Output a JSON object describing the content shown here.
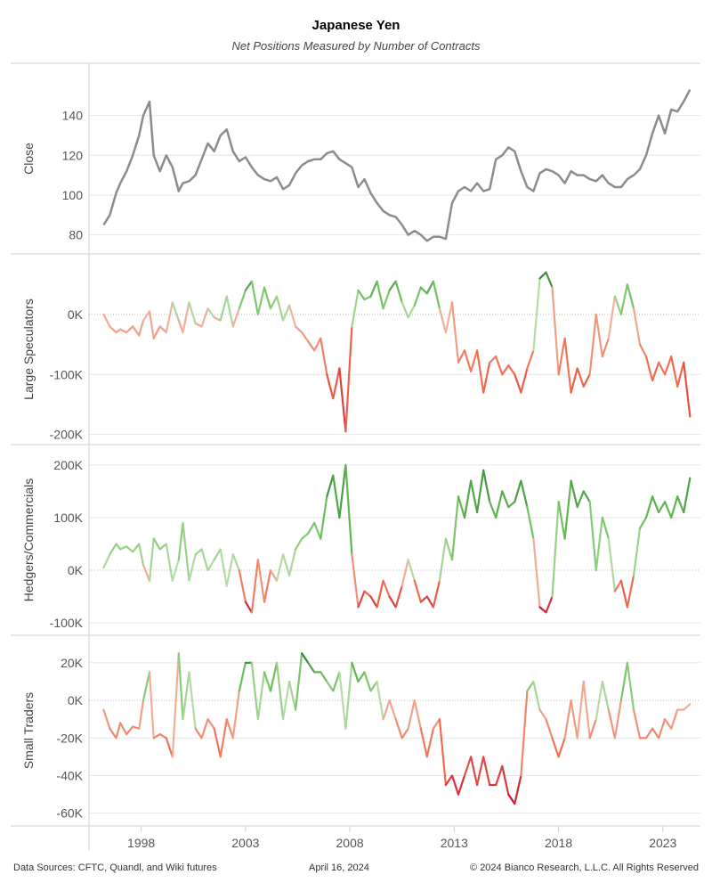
{
  "header": {
    "title": "Japanese Yen",
    "subtitle": "Net Positions Measured by Number of Contracts"
  },
  "footer": {
    "sources": "Data Sources: CFTC, Quandl, and Wiki futures",
    "date": "April 16, 2024",
    "copyright": "© 2024 Bianco Research, L.L.C. All Rights Reserved"
  },
  "colors": {
    "close_line": "#8c8c8c",
    "positive_light": "#b6dba6",
    "positive_mid": "#6cbf5a",
    "positive_dark": "#2e7d32",
    "negative_light": "#f2b49e",
    "negative_mid": "#f06a4f",
    "negative_dark": "#c8102e",
    "grid": "#e6e6e6",
    "zero_line": "#bdbdbd"
  },
  "chart_data": [
    {
      "type": "line",
      "name": "close-panel",
      "ylabel": "Close",
      "yticks": [
        80,
        100,
        120,
        140
      ],
      "ylim": [
        74,
        160
      ],
      "x": [
        1996.2,
        1996.5,
        1996.8,
        1997.0,
        1997.3,
        1997.6,
        1997.9,
        1998.1,
        1998.4,
        1998.6,
        1998.9,
        1999.2,
        1999.5,
        1999.8,
        2000.0,
        2000.3,
        2000.6,
        2000.9,
        2001.2,
        2001.5,
        2001.8,
        2002.1,
        2002.4,
        2002.7,
        2003.0,
        2003.3,
        2003.6,
        2003.9,
        2004.2,
        2004.5,
        2004.8,
        2005.1,
        2005.4,
        2005.7,
        2006.0,
        2006.3,
        2006.6,
        2006.9,
        2007.2,
        2007.5,
        2007.8,
        2008.1,
        2008.4,
        2008.7,
        2009.0,
        2009.3,
        2009.6,
        2009.9,
        2010.2,
        2010.5,
        2010.8,
        2011.1,
        2011.4,
        2011.7,
        2012.0,
        2012.3,
        2012.6,
        2012.9,
        2013.2,
        2013.5,
        2013.8,
        2014.1,
        2014.4,
        2014.7,
        2015.0,
        2015.3,
        2015.6,
        2015.9,
        2016.2,
        2016.5,
        2016.8,
        2017.1,
        2017.4,
        2017.7,
        2018.0,
        2018.3,
        2018.6,
        2018.9,
        2019.2,
        2019.5,
        2019.8,
        2020.1,
        2020.4,
        2020.7,
        2021.0,
        2021.3,
        2021.6,
        2021.9,
        2022.2,
        2022.5,
        2022.8,
        2023.1,
        2023.4,
        2023.7,
        2024.0,
        2024.3
      ],
      "values": [
        85,
        90,
        101,
        106,
        112,
        120,
        130,
        140,
        147,
        120,
        112,
        120,
        114,
        102,
        106,
        107,
        110,
        118,
        126,
        122,
        130,
        133,
        122,
        117,
        119,
        114,
        110,
        108,
        107,
        109,
        103,
        105,
        111,
        115,
        117,
        118,
        118,
        121,
        122,
        118,
        116,
        114,
        104,
        108,
        101,
        96,
        92,
        90,
        89,
        85,
        80,
        82,
        80,
        77,
        79,
        79,
        78,
        96,
        102,
        104,
        102,
        106,
        102,
        103,
        118,
        120,
        124,
        122,
        112,
        104,
        102,
        111,
        113,
        112,
        110,
        106,
        112,
        110,
        110,
        108,
        107,
        110,
        106,
        104,
        104,
        108,
        110,
        113,
        120,
        131,
        140,
        131,
        143,
        142,
        147,
        153
      ]
    },
    {
      "type": "line",
      "name": "large-speculators-panel",
      "ylabel": "Large Speculators",
      "yticks": [
        -200000,
        -100000,
        0
      ],
      "ytick_labels": [
        "-200K",
        "-100K",
        "0K"
      ],
      "ylim": [
        -205000,
        80000
      ],
      "x": [
        1996.2,
        1996.5,
        1996.8,
        1997.0,
        1997.3,
        1997.6,
        1997.9,
        1998.1,
        1998.4,
        1998.6,
        1998.9,
        1999.2,
        1999.5,
        1999.8,
        2000.0,
        2000.3,
        2000.6,
        2000.9,
        2001.2,
        2001.5,
        2001.8,
        2002.1,
        2002.4,
        2002.7,
        2003.0,
        2003.3,
        2003.6,
        2003.9,
        2004.2,
        2004.5,
        2004.8,
        2005.1,
        2005.4,
        2005.7,
        2006.0,
        2006.3,
        2006.6,
        2006.9,
        2007.2,
        2007.5,
        2007.8,
        2008.1,
        2008.4,
        2008.7,
        2009.0,
        2009.3,
        2009.6,
        2009.9,
        2010.2,
        2010.5,
        2010.8,
        2011.1,
        2011.4,
        2011.7,
        2012.0,
        2012.3,
        2012.6,
        2012.9,
        2013.2,
        2013.5,
        2013.8,
        2014.1,
        2014.4,
        2014.7,
        2015.0,
        2015.3,
        2015.6,
        2015.9,
        2016.2,
        2016.5,
        2016.8,
        2017.1,
        2017.4,
        2017.7,
        2018.0,
        2018.3,
        2018.6,
        2018.9,
        2019.2,
        2019.5,
        2019.8,
        2020.1,
        2020.4,
        2020.7,
        2021.0,
        2021.3,
        2021.6,
        2021.9,
        2022.2,
        2022.5,
        2022.8,
        2023.1,
        2023.4,
        2023.7,
        2024.0,
        2024.3
      ],
      "values": [
        0,
        -20000,
        -30000,
        -25000,
        -30000,
        -20000,
        -35000,
        -10000,
        5000,
        -40000,
        -20000,
        -30000,
        20000,
        -10000,
        -30000,
        20000,
        -15000,
        -20000,
        10000,
        -5000,
        -10000,
        30000,
        -20000,
        10000,
        40000,
        55000,
        0,
        45000,
        10000,
        30000,
        -10000,
        15000,
        -20000,
        -30000,
        -45000,
        -60000,
        -40000,
        -100000,
        -140000,
        -90000,
        -195000,
        -20000,
        40000,
        25000,
        30000,
        55000,
        10000,
        40000,
        55000,
        20000,
        -5000,
        15000,
        45000,
        35000,
        55000,
        10000,
        -30000,
        20000,
        -80000,
        -60000,
        -95000,
        -60000,
        -130000,
        -80000,
        -70000,
        -100000,
        -85000,
        -100000,
        -130000,
        -90000,
        -60000,
        60000,
        70000,
        45000,
        -100000,
        -40000,
        -130000,
        -90000,
        -120000,
        -100000,
        0,
        -70000,
        -40000,
        30000,
        0,
        50000,
        10000,
        -50000,
        -70000,
        -110000,
        -80000,
        -100000,
        -70000,
        -120000,
        -80000,
        -170000
      ]
    },
    {
      "type": "line",
      "name": "hedgers-commercials-panel",
      "ylabel": "Hedgers/Commercials",
      "yticks": [
        -100000,
        0,
        100000,
        200000
      ],
      "ytick_labels": [
        "-100K",
        "0K",
        "100K",
        "200K"
      ],
      "ylim": [
        -110000,
        215000
      ],
      "x": [
        1996.2,
        1996.5,
        1996.8,
        1997.0,
        1997.3,
        1997.6,
        1997.9,
        1998.1,
        1998.4,
        1998.6,
        1998.9,
        1999.2,
        1999.5,
        1999.8,
        2000.0,
        2000.3,
        2000.6,
        2000.9,
        2001.2,
        2001.5,
        2001.8,
        2002.1,
        2002.4,
        2002.7,
        2003.0,
        2003.3,
        2003.6,
        2003.9,
        2004.2,
        2004.5,
        2004.8,
        2005.1,
        2005.4,
        2005.7,
        2006.0,
        2006.3,
        2006.6,
        2006.9,
        2007.2,
        2007.5,
        2007.8,
        2008.1,
        2008.4,
        2008.7,
        2009.0,
        2009.3,
        2009.6,
        2009.9,
        2010.2,
        2010.5,
        2010.8,
        2011.1,
        2011.4,
        2011.7,
        2012.0,
        2012.3,
        2012.6,
        2012.9,
        2013.2,
        2013.5,
        2013.8,
        2014.1,
        2014.4,
        2014.7,
        2015.0,
        2015.3,
        2015.6,
        2015.9,
        2016.2,
        2016.5,
        2016.8,
        2017.1,
        2017.4,
        2017.7,
        2018.0,
        2018.3,
        2018.6,
        2018.9,
        2019.2,
        2019.5,
        2019.8,
        2020.1,
        2020.4,
        2020.7,
        2021.0,
        2021.3,
        2021.6,
        2021.9,
        2022.2,
        2022.5,
        2022.8,
        2023.1,
        2023.4,
        2023.7,
        2024.0,
        2024.3
      ],
      "values": [
        5000,
        30000,
        50000,
        40000,
        45000,
        35000,
        50000,
        10000,
        -20000,
        60000,
        40000,
        50000,
        -20000,
        20000,
        90000,
        -20000,
        30000,
        40000,
        0,
        20000,
        40000,
        -30000,
        30000,
        0,
        -60000,
        -80000,
        20000,
        -60000,
        0,
        -20000,
        30000,
        -10000,
        40000,
        60000,
        70000,
        90000,
        60000,
        140000,
        180000,
        100000,
        200000,
        30000,
        -70000,
        -40000,
        -50000,
        -70000,
        -20000,
        -50000,
        -70000,
        -30000,
        20000,
        -20000,
        -60000,
        -50000,
        -70000,
        -20000,
        60000,
        20000,
        140000,
        100000,
        170000,
        110000,
        190000,
        130000,
        100000,
        150000,
        120000,
        130000,
        170000,
        120000,
        60000,
        -70000,
        -80000,
        -50000,
        130000,
        60000,
        170000,
        120000,
        150000,
        130000,
        0,
        100000,
        60000,
        -40000,
        -20000,
        -70000,
        -10000,
        80000,
        100000,
        140000,
        110000,
        130000,
        100000,
        140000,
        110000,
        175000
      ]
    },
    {
      "type": "line",
      "name": "small-traders-panel",
      "ylabel": "Small Traders",
      "yticks": [
        -60000,
        -40000,
        -20000,
        0,
        20000
      ],
      "ytick_labels": [
        "-60K",
        "-40K",
        "-20K",
        "0K",
        "20K"
      ],
      "ylim": [
        -63000,
        28000
      ],
      "x": [
        1996.2,
        1996.5,
        1996.8,
        1997.0,
        1997.3,
        1997.6,
        1997.9,
        1998.1,
        1998.4,
        1998.6,
        1998.9,
        1999.2,
        1999.5,
        1999.8,
        2000.0,
        2000.3,
        2000.6,
        2000.9,
        2001.2,
        2001.5,
        2001.8,
        2002.1,
        2002.4,
        2002.7,
        2003.0,
        2003.3,
        2003.6,
        2003.9,
        2004.2,
        2004.5,
        2004.8,
        2005.1,
        2005.4,
        2005.7,
        2006.0,
        2006.3,
        2006.6,
        2006.9,
        2007.2,
        2007.5,
        2007.8,
        2008.1,
        2008.4,
        2008.7,
        2009.0,
        2009.3,
        2009.6,
        2009.9,
        2010.2,
        2010.5,
        2010.8,
        2011.1,
        2011.4,
        2011.7,
        2012.0,
        2012.3,
        2012.6,
        2012.9,
        2013.2,
        2013.5,
        2013.8,
        2014.1,
        2014.4,
        2014.7,
        2015.0,
        2015.3,
        2015.6,
        2015.9,
        2016.2,
        2016.5,
        2016.8,
        2017.1,
        2017.4,
        2017.7,
        2018.0,
        2018.3,
        2018.6,
        2018.9,
        2019.2,
        2019.5,
        2019.8,
        2020.1,
        2020.4,
        2020.7,
        2021.0,
        2021.3,
        2021.6,
        2021.9,
        2022.2,
        2022.5,
        2022.8,
        2023.1,
        2023.4,
        2023.7,
        2024.0,
        2024.3
      ],
      "values": [
        -5000,
        -15000,
        -20000,
        -12000,
        -18000,
        -14000,
        -15000,
        0,
        15000,
        -20000,
        -18000,
        -20000,
        -30000,
        25000,
        -10000,
        15000,
        -15000,
        -20000,
        -10000,
        -15000,
        -30000,
        -10000,
        -20000,
        5000,
        20000,
        20000,
        -10000,
        15000,
        5000,
        20000,
        -10000,
        10000,
        -5000,
        25000,
        20000,
        15000,
        15000,
        10000,
        5000,
        15000,
        -15000,
        20000,
        10000,
        15000,
        5000,
        10000,
        -10000,
        0,
        -10000,
        -20000,
        -15000,
        0,
        -15000,
        -30000,
        -15000,
        -10000,
        -45000,
        -40000,
        -50000,
        -40000,
        -30000,
        -45000,
        -30000,
        -45000,
        -45000,
        -35000,
        -50000,
        -55000,
        -40000,
        5000,
        10000,
        -5000,
        -10000,
        -20000,
        -30000,
        -20000,
        0,
        -20000,
        10000,
        -20000,
        -10000,
        10000,
        -5000,
        -20000,
        0,
        20000,
        -5000,
        -20000,
        -20000,
        -15000,
        -20000,
        -10000,
        -15000,
        -5000,
        -5000,
        -2000
      ]
    }
  ],
  "x_axis": {
    "ticks": [
      1998,
      2003,
      2008,
      2013,
      2018,
      2023
    ],
    "tick_labels": [
      "1998",
      "2003",
      "2008",
      "2013",
      "2018",
      "2023"
    ],
    "xlim": [
      1995.5,
      2024.8
    ]
  }
}
